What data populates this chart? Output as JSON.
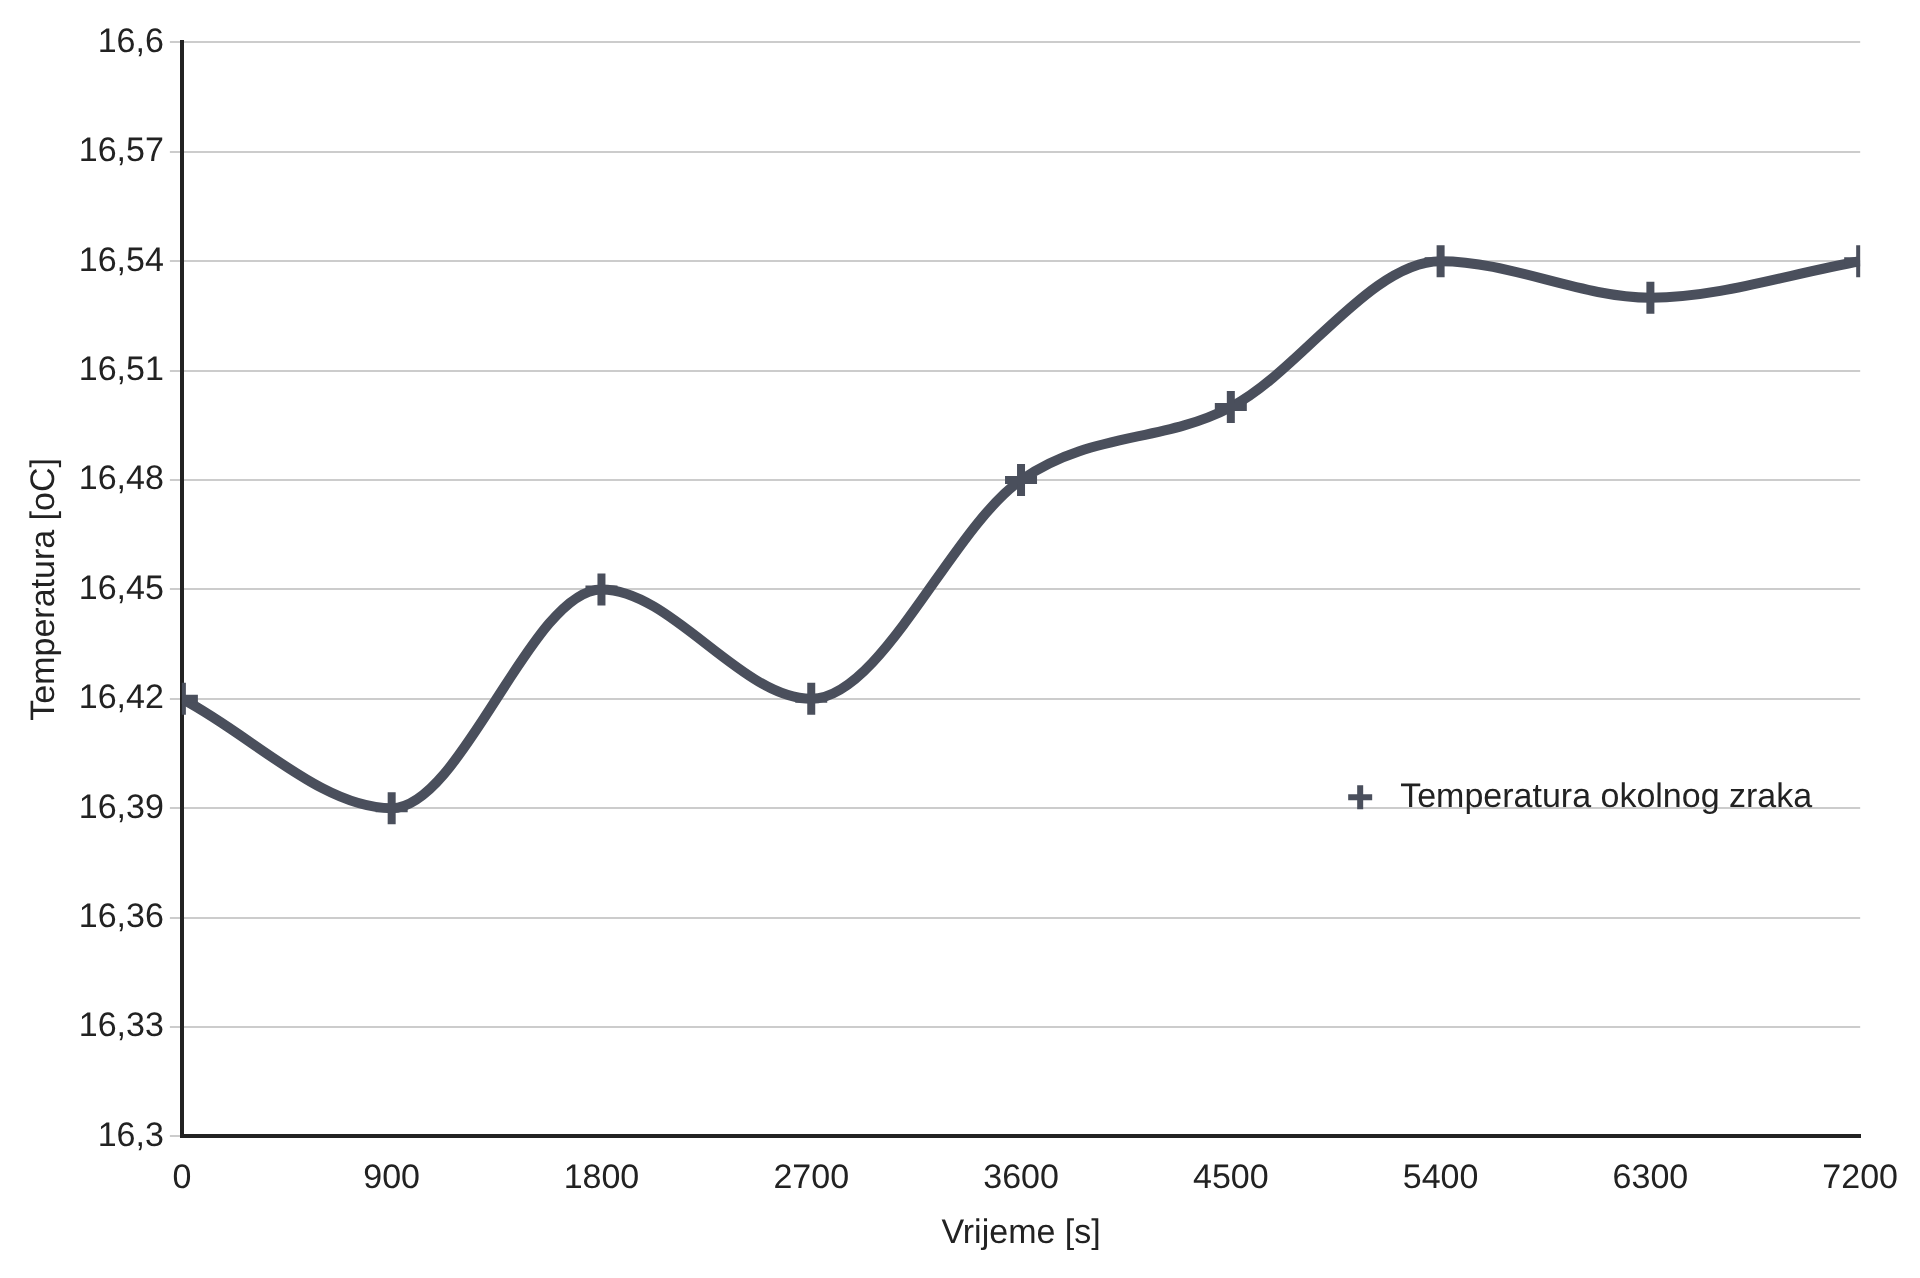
{
  "chart_data": {
    "type": "line",
    "xlabel": "Vrijeme [s]",
    "ylabel": "Temperatura [oC]",
    "x": [
      0,
      900,
      1800,
      2700,
      3600,
      4500,
      5400,
      6300,
      7200
    ],
    "series": [
      {
        "name": "Temperatura okolnog zraka",
        "color": "#4a4f5c",
        "values": [
          16.42,
          16.39,
          16.45,
          16.42,
          16.48,
          16.5,
          16.54,
          16.53,
          16.54
        ]
      }
    ],
    "xlim": [
      0,
      7200
    ],
    "xticks": [
      0,
      900,
      1800,
      2700,
      3600,
      4500,
      5400,
      6300,
      7200
    ],
    "ylim": [
      16.3,
      16.6
    ],
    "yticks": [
      {
        "value": 16.3,
        "label": "16,3"
      },
      {
        "value": 16.33,
        "label": "16,33"
      },
      {
        "value": 16.36,
        "label": "16,36"
      },
      {
        "value": 16.39,
        "label": "16,39"
      },
      {
        "value": 16.42,
        "label": "16,42"
      },
      {
        "value": 16.45,
        "label": "16,45"
      },
      {
        "value": 16.48,
        "label": "16,48"
      },
      {
        "value": 16.51,
        "label": "16,51"
      },
      {
        "value": 16.54,
        "label": "16,54"
      },
      {
        "value": 16.57,
        "label": "16,57"
      },
      {
        "value": 16.6,
        "label": "16,6"
      }
    ],
    "grid": "y",
    "legend": "right",
    "marker": "cross",
    "line_style": "solid"
  }
}
